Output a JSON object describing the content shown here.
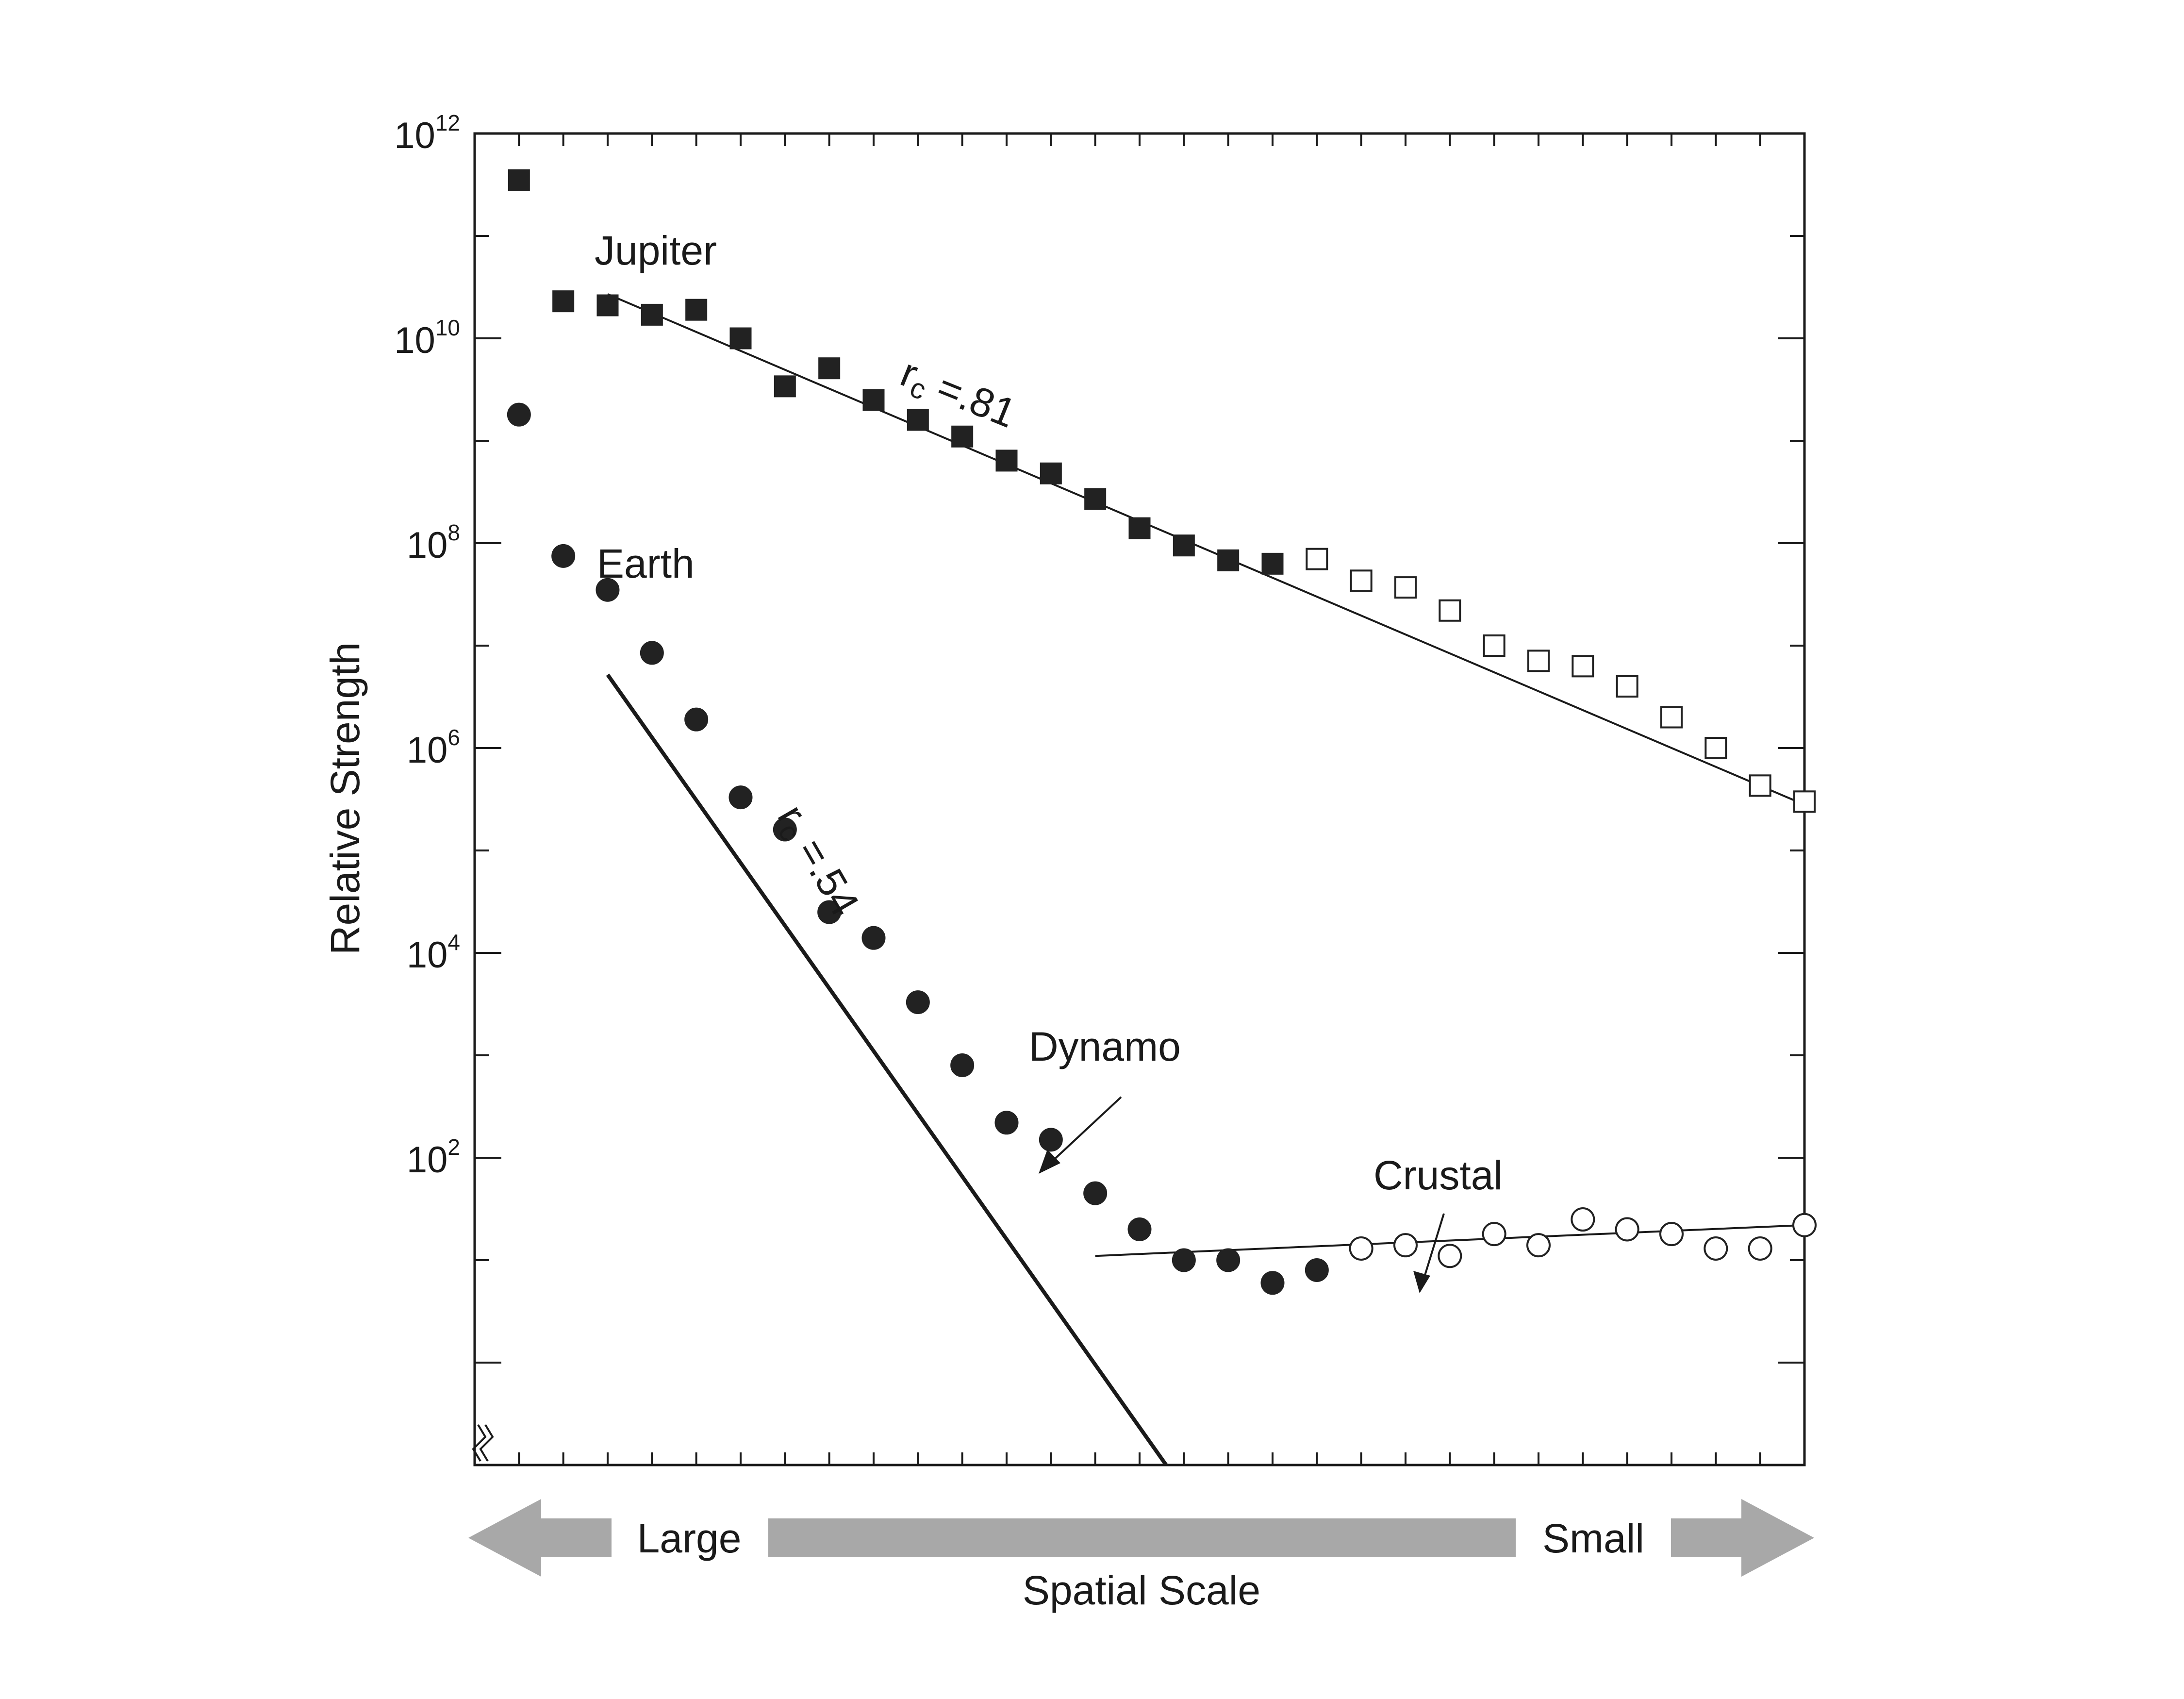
{
  "chart_data": {
    "type": "scatter",
    "title": "",
    "ylabel": "Relative Strength",
    "xlabel": "Spatial Scale",
    "x_direction": {
      "left_label": "Large",
      "right_label": "Small"
    },
    "y_scale": "log",
    "ylim": [
      0.1,
      1000000000000
    ],
    "xlim": [
      0,
      30
    ],
    "y_ticks": [
      {
        "base": "10",
        "exp": "2"
      },
      {
        "base": "10",
        "exp": "4"
      },
      {
        "base": "10",
        "exp": "6"
      },
      {
        "base": "10",
        "exp": "8"
      },
      {
        "base": "10",
        "exp": "10"
      },
      {
        "base": "10",
        "exp": "12"
      }
    ],
    "y_tick_values": [
      100,
      10000,
      1000000,
      100000000,
      10000000000,
      1000000000000
    ],
    "x_ticks": [
      1,
      2,
      3,
      4,
      5,
      6,
      7,
      8,
      9,
      10,
      11,
      12,
      13,
      14,
      15,
      16,
      17,
      18,
      19,
      20,
      21,
      22,
      23,
      24,
      25,
      26,
      27,
      28,
      29
    ],
    "series": [
      {
        "name": "Jupiter",
        "marker": "square",
        "filled": true,
        "color": "#222222",
        "x": [
          1,
          2,
          3,
          4,
          5,
          6,
          7,
          8,
          9,
          10,
          11,
          12,
          13,
          14,
          15,
          16,
          17,
          18
        ],
        "y": [
          350000000000,
          23000000000,
          21000000000,
          17000000000,
          19000000000,
          10000000000,
          3400000000,
          5100000000,
          2500000000,
          1600000000,
          1100000000,
          640000000,
          480000000,
          270000000,
          140000000,
          95000000,
          68000000,
          63000000
        ]
      },
      {
        "name": "",
        "marker": "square",
        "filled": false,
        "color": "#222222",
        "x": [
          19,
          20,
          21,
          22,
          23,
          24,
          25,
          26,
          27,
          28,
          29,
          30
        ],
        "y": [
          70000000,
          43000000,
          37000000,
          22000000,
          10000000,
          7100000,
          6300000,
          4000000,
          2000000,
          1000000,
          430000,
          300000
        ]
      },
      {
        "name": "Earth",
        "marker": "circle",
        "filled": true,
        "color": "#222222",
        "x": [
          1,
          2,
          3,
          4,
          5,
          6,
          7,
          8,
          9,
          10,
          11,
          12,
          13,
          14,
          15,
          16,
          17,
          18,
          19
        ],
        "y": [
          1800000000,
          75000000,
          35000000,
          8500000,
          1900000,
          330000,
          160000,
          25000,
          14000,
          3300,
          800,
          220,
          150,
          45,
          20,
          10,
          10,
          6,
          8
        ]
      },
      {
        "name": "",
        "marker": "circle",
        "filled": false,
        "color": "#222222",
        "x": [
          20,
          21,
          22,
          23,
          24,
          25,
          26,
          27,
          28,
          29,
          30
        ],
        "y": [
          13,
          14,
          11,
          18,
          14,
          25,
          20,
          18,
          13,
          13,
          22
        ]
      }
    ],
    "fit_lines": [
      {
        "label": "Jupiter fit",
        "x": [
          3,
          30
        ],
        "y": [
          27000000000,
          280000
        ]
      },
      {
        "label": "Earth fit",
        "x": [
          3,
          15.6
        ],
        "y": [
          5200000,
          0.1
        ]
      },
      {
        "label": "Crustal fit",
        "x": [
          14,
          30
        ],
        "y": [
          11,
          22
        ]
      }
    ],
    "annotations": {
      "jupiter_label": "Jupiter",
      "earth_label": "Earth",
      "jupiter_rc": {
        "r": "r",
        "sub": "c",
        "rest": " =.81"
      },
      "earth_rc": {
        "r": "r",
        "sub": "c",
        "rest": " =.54"
      },
      "dynamo": "Dynamo",
      "crustal": "Crustal"
    },
    "colors": {
      "markers": "#222222",
      "arrow": "#a8a8a8",
      "axes": "#1a1a1a"
    }
  }
}
